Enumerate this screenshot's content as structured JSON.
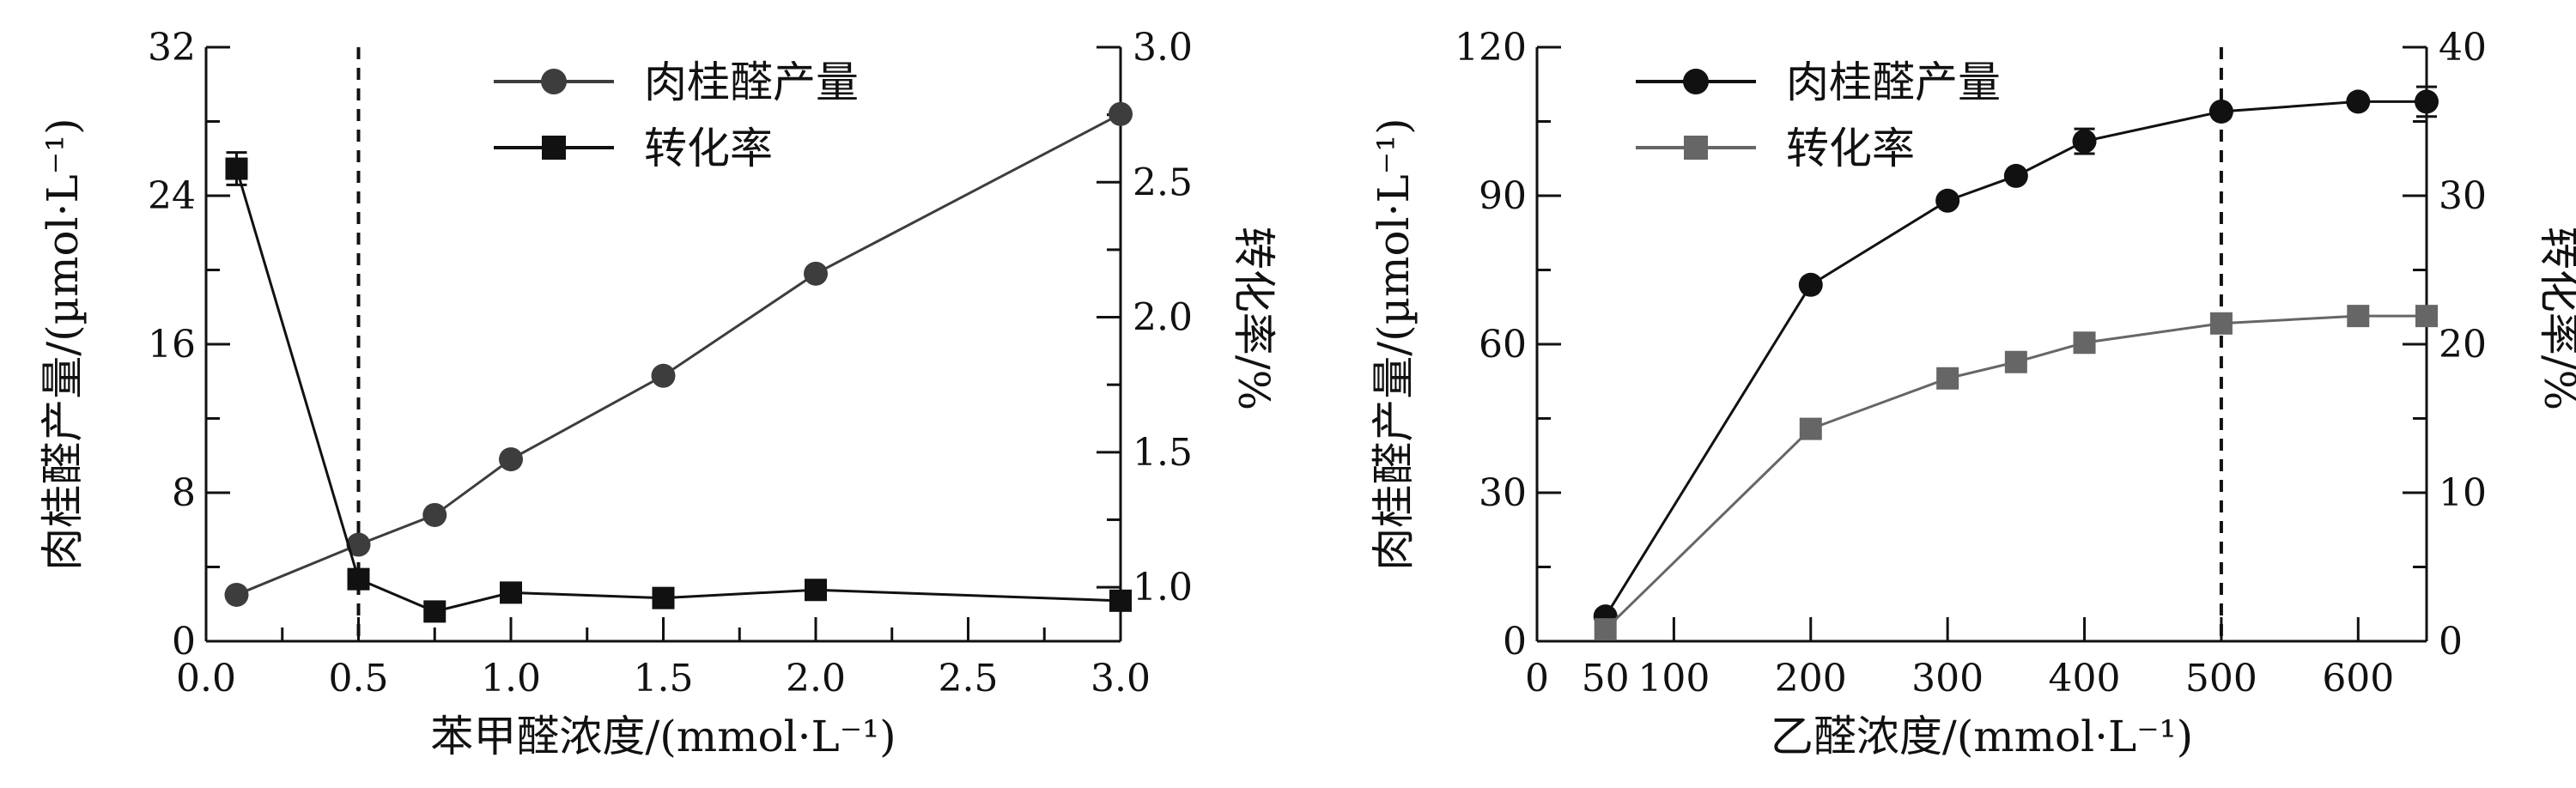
{
  "chart_data": [
    {
      "type": "line",
      "xlabel": "苯甲醛浓度/(mmol·L⁻¹)",
      "ylabel": "肉桂醛产量/(µmol·L⁻¹)",
      "y2label": "转化率/%",
      "xlim": [
        0,
        3.0
      ],
      "ylim": [
        0,
        32
      ],
      "y2lim": [
        0.8,
        3.0
      ],
      "xticks": [
        "0.0",
        "0.5",
        "1.0",
        "1.5",
        "2.0",
        "2.5",
        "3.0"
      ],
      "yticks": [
        "0",
        "8",
        "16",
        "24",
        "32"
      ],
      "y2ticks": [
        "1.0",
        "1.5",
        "2.0",
        "2.5",
        "3.0"
      ],
      "vline": 0.5,
      "legend": {
        "position": "top-center",
        "entries": [
          "肉桂醛产量",
          "转化率"
        ]
      },
      "series": [
        {
          "name": "肉桂醛产量",
          "axis": "left",
          "marker": "circle",
          "color": "#3d3d3d",
          "x": [
            0.1,
            0.5,
            0.75,
            1.0,
            1.5,
            2.0,
            3.0
          ],
          "y": [
            2.5,
            5.2,
            6.8,
            9.8,
            14.3,
            19.8,
            28.4
          ]
        },
        {
          "name": "转化率",
          "axis": "right",
          "marker": "square",
          "color": "#111111",
          "x": [
            0.1,
            0.5,
            0.75,
            1.0,
            1.5,
            2.0,
            3.0
          ],
          "y": [
            2.55,
            1.03,
            0.91,
            0.98,
            0.96,
            0.99,
            0.95
          ],
          "error": [
            0.06,
            0,
            0,
            0,
            0,
            0,
            0
          ]
        }
      ]
    },
    {
      "type": "line",
      "xlabel": "乙醛浓度/(mmol·L⁻¹)",
      "ylabel": "肉桂醛产量/(µmol·L⁻¹)",
      "y2label": "转化率/%",
      "xlim": [
        0,
        650
      ],
      "ylim": [
        0,
        120
      ],
      "y2lim": [
        0,
        40
      ],
      "xticks": [
        "0",
        "50",
        "100",
        "200",
        "300",
        "400",
        "500",
        "600"
      ],
      "xtick_values": [
        0,
        50,
        100,
        200,
        300,
        400,
        500,
        600
      ],
      "yticks": [
        "0",
        "30",
        "60",
        "90",
        "120"
      ],
      "y2ticks": [
        "0",
        "10",
        "20",
        "30",
        "40"
      ],
      "vline": 500,
      "legend": {
        "position": "top-center",
        "entries": [
          "肉桂醛产量",
          "转化率"
        ]
      },
      "series": [
        {
          "name": "肉桂醛产量",
          "axis": "left",
          "marker": "circle",
          "color": "#111111",
          "x": [
            50,
            200,
            300,
            350,
            400,
            500,
            600,
            650
          ],
          "y": [
            5,
            72,
            89,
            94,
            101,
            107,
            109,
            109
          ],
          "error": [
            0,
            0,
            0,
            0,
            2.5,
            0,
            0,
            3
          ]
        },
        {
          "name": "转化率",
          "axis": "right",
          "marker": "square",
          "color": "#666666",
          "x": [
            50,
            200,
            300,
            350,
            400,
            500,
            600,
            650
          ],
          "y": [
            0.8,
            14.3,
            17.7,
            18.8,
            20.1,
            21.4,
            21.9,
            21.9
          ]
        }
      ]
    }
  ]
}
